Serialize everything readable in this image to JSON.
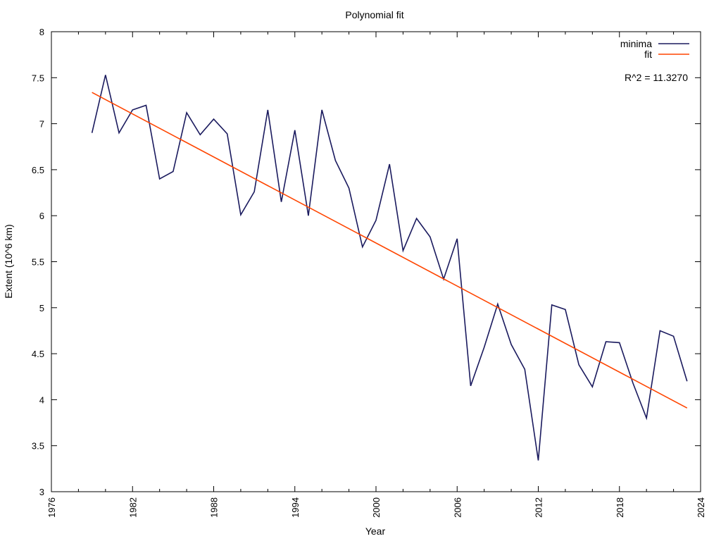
{
  "chart_data": {
    "type": "line",
    "title": "Polynomial fit",
    "xlabel": "Year",
    "ylabel": "Extent (10^6 km)",
    "xlim": [
      1976,
      2024
    ],
    "ylim": [
      3,
      8
    ],
    "x_ticks": [
      1976,
      1982,
      1988,
      1994,
      2000,
      2006,
      2012,
      2018,
      2024
    ],
    "y_ticks": [
      3,
      3.5,
      4,
      4.5,
      5,
      5.5,
      6,
      6.5,
      7,
      7.5,
      8
    ],
    "grid": false,
    "legend_position": "top-right",
    "annotation": "R^2 = 11.3270",
    "series": [
      {
        "name": "minima",
        "color": "#1a1a5e",
        "x": [
          1979,
          1980,
          1981,
          1982,
          1983,
          1984,
          1985,
          1986,
          1987,
          1988,
          1989,
          1990,
          1991,
          1992,
          1993,
          1994,
          1995,
          1996,
          1997,
          1998,
          1999,
          2000,
          2001,
          2002,
          2003,
          2004,
          2005,
          2006,
          2007,
          2008,
          2009,
          2010,
          2011,
          2012,
          2013,
          2014,
          2015,
          2016,
          2017,
          2018,
          2019,
          2020,
          2021,
          2022,
          2023
        ],
        "y": [
          6.9,
          7.53,
          6.9,
          7.15,
          7.2,
          6.4,
          6.48,
          7.12,
          6.88,
          7.05,
          6.89,
          6.01,
          6.26,
          7.15,
          6.15,
          6.93,
          6.0,
          7.15,
          6.6,
          6.3,
          5.66,
          5.95,
          6.56,
          5.62,
          5.97,
          5.77,
          5.31,
          5.75,
          4.15,
          4.57,
          5.04,
          4.6,
          4.33,
          3.34,
          5.03,
          4.98,
          4.38,
          4.14,
          4.63,
          4.62,
          4.18,
          3.8,
          4.75,
          4.69,
          4.2
        ]
      },
      {
        "name": "fit",
        "color": "#ff4500",
        "x": [
          1979,
          2023
        ],
        "y": [
          7.34,
          3.91
        ]
      }
    ]
  }
}
